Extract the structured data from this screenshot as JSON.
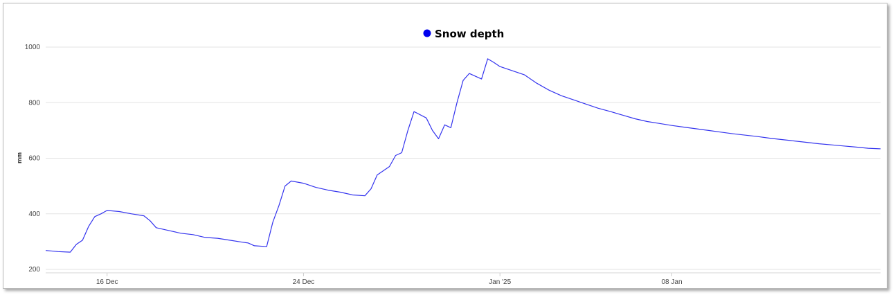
{
  "chart_data": {
    "type": "line",
    "title": "",
    "ylabel": "mm",
    "ylim": [
      200,
      1000
    ],
    "yticks": [
      "200",
      "400",
      "600",
      "800",
      "1000"
    ],
    "xlim": [
      "2024-12-13T12:00",
      "2025-01-16T12:00"
    ],
    "xticks": [
      {
        "label": "16 Dec",
        "date": "2024-12-16"
      },
      {
        "label": "24 Dec",
        "date": "2024-12-24"
      },
      {
        "label": "Jan '25",
        "date": "2025-01-01"
      },
      {
        "label": "08 Jan",
        "date": "2025-01-08"
      }
    ],
    "grid": true,
    "legend_position": "top-center",
    "colors": {
      "series": "#3333ee",
      "legend_marker": "#0000ee",
      "grid": "#e3e3e3"
    },
    "series": [
      {
        "name": "Snow depth",
        "points": [
          [
            "2024-12-13T12:00",
            268
          ],
          [
            "2024-12-14T00:00",
            264
          ],
          [
            "2024-12-14T12:00",
            262
          ],
          [
            "2024-12-14T18:00",
            290
          ],
          [
            "2024-12-15T00:00",
            305
          ],
          [
            "2024-12-15T06:00",
            355
          ],
          [
            "2024-12-15T12:00",
            390
          ],
          [
            "2024-12-15T18:00",
            400
          ],
          [
            "2024-12-16T00:00",
            412
          ],
          [
            "2024-12-16T12:00",
            408
          ],
          [
            "2024-12-17T00:00",
            400
          ],
          [
            "2024-12-17T12:00",
            393
          ],
          [
            "2024-12-17T18:00",
            375
          ],
          [
            "2024-12-18T00:00",
            350
          ],
          [
            "2024-12-18T12:00",
            340
          ],
          [
            "2024-12-19T00:00",
            330
          ],
          [
            "2024-12-19T12:00",
            325
          ],
          [
            "2024-12-20T00:00",
            315
          ],
          [
            "2024-12-20T12:00",
            312
          ],
          [
            "2024-12-21T00:00",
            305
          ],
          [
            "2024-12-21T12:00",
            298
          ],
          [
            "2024-12-21T18:00",
            295
          ],
          [
            "2024-12-22T00:00",
            285
          ],
          [
            "2024-12-22T12:00",
            282
          ],
          [
            "2024-12-22T18:00",
            370
          ],
          [
            "2024-12-23T00:00",
            430
          ],
          [
            "2024-12-23T06:00",
            500
          ],
          [
            "2024-12-23T12:00",
            518
          ],
          [
            "2024-12-24T00:00",
            510
          ],
          [
            "2024-12-24T12:00",
            495
          ],
          [
            "2024-12-25T00:00",
            485
          ],
          [
            "2024-12-25T12:00",
            478
          ],
          [
            "2024-12-26T00:00",
            468
          ],
          [
            "2024-12-26T12:00",
            465
          ],
          [
            "2024-12-26T18:00",
            490
          ],
          [
            "2024-12-27T00:00",
            540
          ],
          [
            "2024-12-27T12:00",
            570
          ],
          [
            "2024-12-27T18:00",
            610
          ],
          [
            "2024-12-28T00:00",
            620
          ],
          [
            "2024-12-28T06:00",
            700
          ],
          [
            "2024-12-28T12:00",
            768
          ],
          [
            "2024-12-29T00:00",
            745
          ],
          [
            "2024-12-29T06:00",
            700
          ],
          [
            "2024-12-29T12:00",
            670
          ],
          [
            "2024-12-29T18:00",
            720
          ],
          [
            "2024-12-30T00:00",
            710
          ],
          [
            "2024-12-30T06:00",
            800
          ],
          [
            "2024-12-30T12:00",
            880
          ],
          [
            "2024-12-30T18:00",
            905
          ],
          [
            "2024-12-31T00:00",
            895
          ],
          [
            "2024-12-31T06:00",
            885
          ],
          [
            "2024-12-31T12:00",
            958
          ],
          [
            "2024-12-31T18:00",
            945
          ],
          [
            "2025-01-01T00:00",
            930
          ],
          [
            "2025-01-01T12:00",
            915
          ],
          [
            "2025-01-02T00:00",
            900
          ],
          [
            "2025-01-02T12:00",
            870
          ],
          [
            "2025-01-03T00:00",
            845
          ],
          [
            "2025-01-03T12:00",
            825
          ],
          [
            "2025-01-04T00:00",
            810
          ],
          [
            "2025-01-04T12:00",
            795
          ],
          [
            "2025-01-05T00:00",
            780
          ],
          [
            "2025-01-05T12:00",
            768
          ],
          [
            "2025-01-06T00:00",
            755
          ],
          [
            "2025-01-06T12:00",
            742
          ],
          [
            "2025-01-07T00:00",
            732
          ],
          [
            "2025-01-07T12:00",
            725
          ],
          [
            "2025-01-08T00:00",
            718
          ],
          [
            "2025-01-08T12:00",
            712
          ],
          [
            "2025-01-09T00:00",
            706
          ],
          [
            "2025-01-09T12:00",
            700
          ],
          [
            "2025-01-10T00:00",
            694
          ],
          [
            "2025-01-10T12:00",
            688
          ],
          [
            "2025-01-11T00:00",
            683
          ],
          [
            "2025-01-11T12:00",
            678
          ],
          [
            "2025-01-12T00:00",
            672
          ],
          [
            "2025-01-12T12:00",
            667
          ],
          [
            "2025-01-13T00:00",
            662
          ],
          [
            "2025-01-13T12:00",
            657
          ],
          [
            "2025-01-14T00:00",
            652
          ],
          [
            "2025-01-14T12:00",
            648
          ],
          [
            "2025-01-15T00:00",
            644
          ],
          [
            "2025-01-15T12:00",
            640
          ],
          [
            "2025-01-16T00:00",
            636
          ],
          [
            "2025-01-16T12:00",
            634
          ]
        ]
      }
    ]
  }
}
